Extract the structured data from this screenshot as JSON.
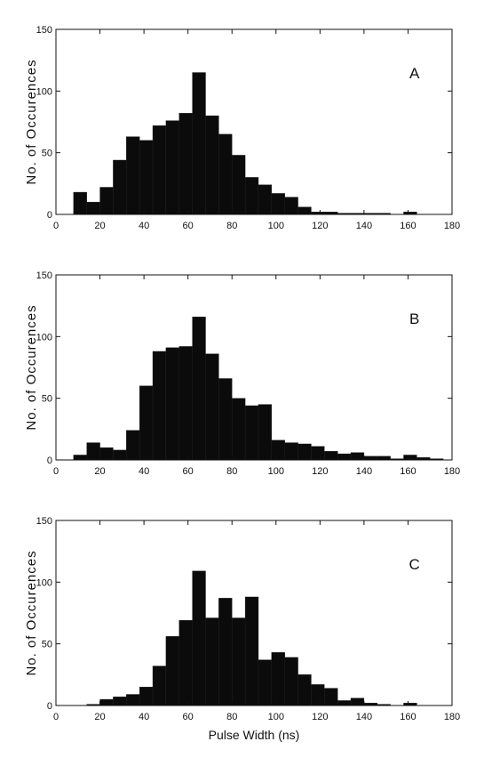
{
  "chart_data": [
    {
      "type": "bar",
      "panel_label": "A",
      "ylabel": "No. of Occurences",
      "xlabel": "",
      "xlim": [
        0,
        180
      ],
      "ylim": [
        0,
        150
      ],
      "xticks": [
        0,
        20,
        40,
        60,
        80,
        100,
        120,
        140,
        160,
        180
      ],
      "yticks": [
        0,
        50,
        100,
        150
      ],
      "bin_width": 6,
      "bins": [
        {
          "x": 8,
          "y": 18
        },
        {
          "x": 14,
          "y": 10
        },
        {
          "x": 20,
          "y": 22
        },
        {
          "x": 26,
          "y": 44
        },
        {
          "x": 32,
          "y": 63
        },
        {
          "x": 38,
          "y": 60
        },
        {
          "x": 44,
          "y": 72
        },
        {
          "x": 50,
          "y": 76
        },
        {
          "x": 56,
          "y": 82
        },
        {
          "x": 62,
          "y": 115
        },
        {
          "x": 68,
          "y": 80
        },
        {
          "x": 74,
          "y": 65
        },
        {
          "x": 80,
          "y": 48
        },
        {
          "x": 86,
          "y": 30
        },
        {
          "x": 92,
          "y": 24
        },
        {
          "x": 98,
          "y": 17
        },
        {
          "x": 104,
          "y": 14
        },
        {
          "x": 110,
          "y": 6
        },
        {
          "x": 116,
          "y": 2
        },
        {
          "x": 122,
          "y": 2
        },
        {
          "x": 128,
          "y": 1
        },
        {
          "x": 134,
          "y": 1
        },
        {
          "x": 140,
          "y": 1
        },
        {
          "x": 146,
          "y": 1
        },
        {
          "x": 152,
          "y": 0
        },
        {
          "x": 158,
          "y": 2
        }
      ]
    },
    {
      "type": "bar",
      "panel_label": "B",
      "ylabel": "No. of Occurences",
      "xlabel": "",
      "xlim": [
        0,
        180
      ],
      "ylim": [
        0,
        150
      ],
      "xticks": [
        0,
        20,
        40,
        60,
        80,
        100,
        120,
        140,
        160,
        180
      ],
      "yticks": [
        0,
        50,
        100,
        150
      ],
      "bin_width": 6,
      "bins": [
        {
          "x": 8,
          "y": 4
        },
        {
          "x": 14,
          "y": 14
        },
        {
          "x": 20,
          "y": 10
        },
        {
          "x": 26,
          "y": 8
        },
        {
          "x": 32,
          "y": 24
        },
        {
          "x": 38,
          "y": 60
        },
        {
          "x": 44,
          "y": 88
        },
        {
          "x": 50,
          "y": 91
        },
        {
          "x": 56,
          "y": 92
        },
        {
          "x": 62,
          "y": 116
        },
        {
          "x": 68,
          "y": 86
        },
        {
          "x": 74,
          "y": 66
        },
        {
          "x": 80,
          "y": 50
        },
        {
          "x": 86,
          "y": 44
        },
        {
          "x": 92,
          "y": 45
        },
        {
          "x": 98,
          "y": 16
        },
        {
          "x": 104,
          "y": 14
        },
        {
          "x": 110,
          "y": 13
        },
        {
          "x": 116,
          "y": 11
        },
        {
          "x": 122,
          "y": 7
        },
        {
          "x": 128,
          "y": 5
        },
        {
          "x": 134,
          "y": 6
        },
        {
          "x": 140,
          "y": 3
        },
        {
          "x": 146,
          "y": 3
        },
        {
          "x": 152,
          "y": 1
        },
        {
          "x": 158,
          "y": 4
        },
        {
          "x": 164,
          "y": 2
        },
        {
          "x": 170,
          "y": 1
        }
      ]
    },
    {
      "type": "bar",
      "panel_label": "C",
      "ylabel": "No. of Occurences",
      "xlabel": "Pulse Width (ns)",
      "xlim": [
        0,
        180
      ],
      "ylim": [
        0,
        150
      ],
      "xticks": [
        0,
        20,
        40,
        60,
        80,
        100,
        120,
        140,
        160,
        180
      ],
      "yticks": [
        0,
        50,
        100,
        150
      ],
      "bin_width": 6,
      "bins": [
        {
          "x": 14,
          "y": 1
        },
        {
          "x": 20,
          "y": 5
        },
        {
          "x": 26,
          "y": 7
        },
        {
          "x": 32,
          "y": 9
        },
        {
          "x": 38,
          "y": 15
        },
        {
          "x": 44,
          "y": 32
        },
        {
          "x": 50,
          "y": 56
        },
        {
          "x": 56,
          "y": 69
        },
        {
          "x": 62,
          "y": 109
        },
        {
          "x": 68,
          "y": 71
        },
        {
          "x": 74,
          "y": 87
        },
        {
          "x": 80,
          "y": 71
        },
        {
          "x": 86,
          "y": 88
        },
        {
          "x": 92,
          "y": 37
        },
        {
          "x": 98,
          "y": 43
        },
        {
          "x": 104,
          "y": 39
        },
        {
          "x": 110,
          "y": 25
        },
        {
          "x": 116,
          "y": 17
        },
        {
          "x": 122,
          "y": 14
        },
        {
          "x": 128,
          "y": 4
        },
        {
          "x": 134,
          "y": 6
        },
        {
          "x": 140,
          "y": 2
        },
        {
          "x": 146,
          "y": 1
        },
        {
          "x": 152,
          "y": 0
        },
        {
          "x": 158,
          "y": 2
        }
      ]
    }
  ],
  "style": {
    "bar_color": "#0b0b0b",
    "axis_color": "#111111"
  }
}
